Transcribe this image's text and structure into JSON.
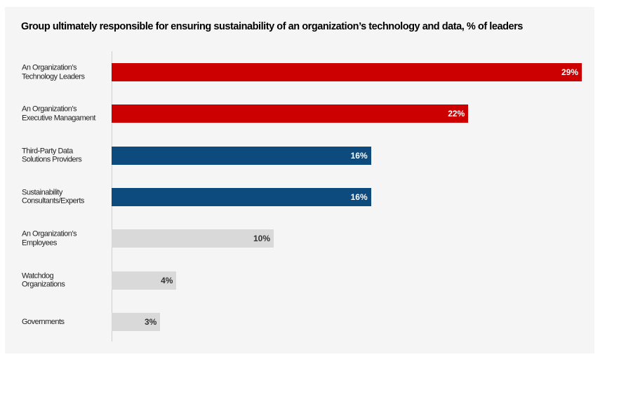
{
  "chart_data": {
    "type": "bar",
    "orientation": "horizontal",
    "title": "Group ultimately responsible for ensuring sustainability of an organization’s technology and data, % of leaders",
    "xlabel": "",
    "ylabel": "",
    "xlim": [
      0,
      30
    ],
    "grid": false,
    "legend": "none",
    "categories": [
      "An Organization’s\nTechnology Leaders",
      "An Organization’s\nExecutive Managament",
      "Third-Party Data\nSolutions Providers",
      "Sustainability\nConsultants/Experts",
      "An Organization’s\nEmployees",
      "Watchdog\nOrganizations",
      "Governments"
    ],
    "values": [
      29,
      22,
      16,
      16,
      10,
      4,
      3
    ],
    "value_labels": [
      "29%",
      "22%",
      "16%",
      "16%",
      "10%",
      "4%",
      "3%"
    ],
    "bar_colors": [
      "#cc0000",
      "#cc0000",
      "#0d4a7e",
      "#0d4a7e",
      "#d9d9d9",
      "#d9d9d9",
      "#d9d9d9"
    ],
    "label_colors": [
      "#ffffff",
      "#ffffff",
      "#ffffff",
      "#ffffff",
      "#333333",
      "#333333",
      "#333333"
    ]
  }
}
